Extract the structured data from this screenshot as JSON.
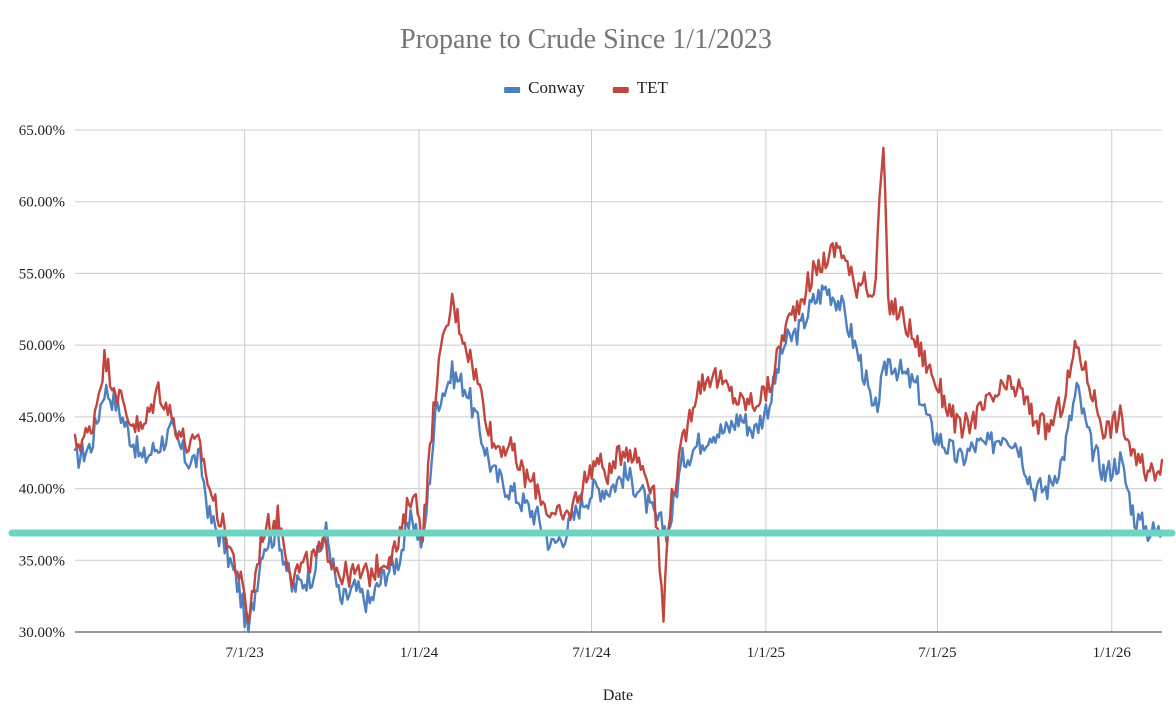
{
  "chart_data": {
    "type": "line",
    "title": "Propane to Crude Since 1/1/2023",
    "xlabel": "Date",
    "ylabel": "",
    "legend_position": "top",
    "grid": true,
    "x_range": [
      "2023-01-03",
      "2026-02-23"
    ],
    "ylim": [
      0.3,
      0.65
    ],
    "y_ticks": [
      "30.00%",
      "35.00%",
      "40.00%",
      "45.00%",
      "50.00%",
      "55.00%",
      "60.00%",
      "65.00%"
    ],
    "x_ticks": [
      {
        "date": "2023-07-01",
        "label": "7/1/23"
      },
      {
        "date": "2024-01-01",
        "label": "1/1/24"
      },
      {
        "date": "2024-07-01",
        "label": "7/1/24"
      },
      {
        "date": "2025-01-01",
        "label": "1/1/25"
      },
      {
        "date": "2025-07-01",
        "label": "7/1/25"
      },
      {
        "date": "2026-01-01",
        "label": "1/1/26"
      }
    ],
    "reference_line": {
      "value": 0.369,
      "color": "#6dd3c2"
    },
    "series": [
      {
        "name": "Conway",
        "color": "#4f7fbf",
        "points": [
          [
            "2023-01-03",
            0.42
          ],
          [
            "2023-01-20",
            0.43
          ],
          [
            "2023-02-03",
            0.47
          ],
          [
            "2023-02-15",
            0.46
          ],
          [
            "2023-02-28",
            0.44
          ],
          [
            "2023-03-15",
            0.42
          ],
          [
            "2023-04-01",
            0.43
          ],
          [
            "2023-04-15",
            0.44
          ],
          [
            "2023-05-01",
            0.42
          ],
          [
            "2023-05-15",
            0.42
          ],
          [
            "2023-05-25",
            0.38
          ],
          [
            "2023-06-10",
            0.36
          ],
          [
            "2023-06-25",
            0.33
          ],
          [
            "2023-07-05",
            0.3
          ],
          [
            "2023-07-20",
            0.36
          ],
          [
            "2023-08-05",
            0.37
          ],
          [
            "2023-08-20",
            0.33
          ],
          [
            "2023-09-10",
            0.34
          ],
          [
            "2023-09-25",
            0.37
          ],
          [
            "2023-10-10",
            0.32
          ],
          [
            "2023-10-25",
            0.33
          ],
          [
            "2023-11-10",
            0.32
          ],
          [
            "2023-11-25",
            0.34
          ],
          [
            "2023-12-10",
            0.35
          ],
          [
            "2023-12-25",
            0.38
          ],
          [
            "2024-01-05",
            0.36
          ],
          [
            "2024-01-20",
            0.46
          ],
          [
            "2024-02-05",
            0.48
          ],
          [
            "2024-02-20",
            0.47
          ],
          [
            "2024-03-05",
            0.44
          ],
          [
            "2024-03-20",
            0.41
          ],
          [
            "2024-04-05",
            0.4
          ],
          [
            "2024-04-20",
            0.39
          ],
          [
            "2024-05-05",
            0.38
          ],
          [
            "2024-05-20",
            0.36
          ],
          [
            "2024-06-05",
            0.37
          ],
          [
            "2024-06-20",
            0.39
          ],
          [
            "2024-07-05",
            0.4
          ],
          [
            "2024-07-20",
            0.4
          ],
          [
            "2024-08-05",
            0.41
          ],
          [
            "2024-08-20",
            0.4
          ],
          [
            "2024-09-05",
            0.38
          ],
          [
            "2024-09-20",
            0.37
          ],
          [
            "2024-10-05",
            0.42
          ],
          [
            "2024-10-20",
            0.43
          ],
          [
            "2024-11-05",
            0.44
          ],
          [
            "2024-11-20",
            0.44
          ],
          [
            "2024-12-05",
            0.45
          ],
          [
            "2024-12-20",
            0.44
          ],
          [
            "2025-01-05",
            0.46
          ],
          [
            "2025-01-20",
            0.5
          ],
          [
            "2025-02-05",
            0.51
          ],
          [
            "2025-02-20",
            0.53
          ],
          [
            "2025-03-05",
            0.54
          ],
          [
            "2025-03-20",
            0.53
          ],
          [
            "2025-04-05",
            0.5
          ],
          [
            "2025-04-15",
            0.48
          ],
          [
            "2025-04-25",
            0.45
          ],
          [
            "2025-05-10",
            0.49
          ],
          [
            "2025-05-25",
            0.48
          ],
          [
            "2025-06-10",
            0.47
          ],
          [
            "2025-06-25",
            0.44
          ],
          [
            "2025-07-10",
            0.43
          ],
          [
            "2025-07-25",
            0.42
          ],
          [
            "2025-08-10",
            0.43
          ],
          [
            "2025-08-25",
            0.43
          ],
          [
            "2025-09-10",
            0.44
          ],
          [
            "2025-09-25",
            0.43
          ],
          [
            "2025-10-10",
            0.4
          ],
          [
            "2025-10-25",
            0.4
          ],
          [
            "2025-11-10",
            0.42
          ],
          [
            "2025-11-25",
            0.47
          ],
          [
            "2025-12-10",
            0.43
          ],
          [
            "2025-12-25",
            0.41
          ],
          [
            "2026-01-10",
            0.42
          ],
          [
            "2026-01-25",
            0.38
          ],
          [
            "2026-02-10",
            0.37
          ],
          [
            "2026-02-23",
            0.37
          ]
        ]
      },
      {
        "name": "TET",
        "color": "#c0463f",
        "points": [
          [
            "2023-01-03",
            0.43
          ],
          [
            "2023-01-20",
            0.44
          ],
          [
            "2023-02-03",
            0.49
          ],
          [
            "2023-02-15",
            0.47
          ],
          [
            "2023-02-28",
            0.45
          ],
          [
            "2023-03-15",
            0.44
          ],
          [
            "2023-04-01",
            0.47
          ],
          [
            "2023-04-15",
            0.45
          ],
          [
            "2023-05-01",
            0.43
          ],
          [
            "2023-05-15",
            0.43
          ],
          [
            "2023-05-25",
            0.4
          ],
          [
            "2023-06-10",
            0.37
          ],
          [
            "2023-06-25",
            0.34
          ],
          [
            "2023-07-05",
            0.31
          ],
          [
            "2023-07-20",
            0.37
          ],
          [
            "2023-08-05",
            0.38
          ],
          [
            "2023-08-20",
            0.34
          ],
          [
            "2023-09-10",
            0.35
          ],
          [
            "2023-09-25",
            0.36
          ],
          [
            "2023-10-10",
            0.34
          ],
          [
            "2023-10-25",
            0.34
          ],
          [
            "2023-11-10",
            0.34
          ],
          [
            "2023-11-25",
            0.35
          ],
          [
            "2023-12-10",
            0.36
          ],
          [
            "2023-12-25",
            0.4
          ],
          [
            "2024-01-05",
            0.37
          ],
          [
            "2024-01-20",
            0.48
          ],
          [
            "2024-02-05",
            0.53
          ],
          [
            "2024-02-20",
            0.5
          ],
          [
            "2024-03-05",
            0.47
          ],
          [
            "2024-03-20",
            0.43
          ],
          [
            "2024-04-05",
            0.43
          ],
          [
            "2024-04-20",
            0.41
          ],
          [
            "2024-05-05",
            0.4
          ],
          [
            "2024-05-20",
            0.38
          ],
          [
            "2024-06-05",
            0.38
          ],
          [
            "2024-06-20",
            0.4
          ],
          [
            "2024-07-05",
            0.42
          ],
          [
            "2024-07-20",
            0.41
          ],
          [
            "2024-08-05",
            0.43
          ],
          [
            "2024-08-20",
            0.42
          ],
          [
            "2024-09-05",
            0.4
          ],
          [
            "2024-09-15",
            0.31
          ],
          [
            "2024-09-20",
            0.38
          ],
          [
            "2024-10-05",
            0.43
          ],
          [
            "2024-10-20",
            0.47
          ],
          [
            "2024-11-05",
            0.48
          ],
          [
            "2024-11-20",
            0.47
          ],
          [
            "2024-12-05",
            0.46
          ],
          [
            "2024-12-20",
            0.46
          ],
          [
            "2025-01-05",
            0.47
          ],
          [
            "2025-01-20",
            0.51
          ],
          [
            "2025-02-05",
            0.53
          ],
          [
            "2025-02-20",
            0.55
          ],
          [
            "2025-03-05",
            0.56
          ],
          [
            "2025-03-20",
            0.57
          ],
          [
            "2025-04-05",
            0.54
          ],
          [
            "2025-04-15",
            0.55
          ],
          [
            "2025-04-25",
            0.53
          ],
          [
            "2025-05-05",
            0.64
          ],
          [
            "2025-05-10",
            0.53
          ],
          [
            "2025-05-25",
            0.52
          ],
          [
            "2025-06-10",
            0.5
          ],
          [
            "2025-06-25",
            0.48
          ],
          [
            "2025-07-10",
            0.46
          ],
          [
            "2025-07-25",
            0.44
          ],
          [
            "2025-08-10",
            0.45
          ],
          [
            "2025-08-25",
            0.46
          ],
          [
            "2025-09-10",
            0.47
          ],
          [
            "2025-09-25",
            0.47
          ],
          [
            "2025-10-10",
            0.45
          ],
          [
            "2025-10-25",
            0.44
          ],
          [
            "2025-11-10",
            0.46
          ],
          [
            "2025-11-25",
            0.5
          ],
          [
            "2025-12-10",
            0.47
          ],
          [
            "2025-12-25",
            0.44
          ],
          [
            "2026-01-10",
            0.45
          ],
          [
            "2026-01-25",
            0.42
          ],
          [
            "2026-02-10",
            0.41
          ],
          [
            "2026-02-23",
            0.42
          ]
        ]
      }
    ]
  }
}
